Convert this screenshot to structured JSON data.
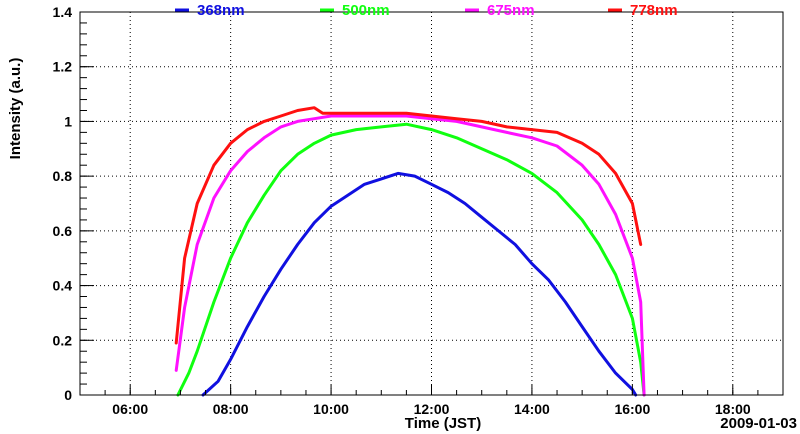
{
  "chart_data": {
    "type": "line",
    "title": "",
    "xlabel": "Time (JST)",
    "ylabel": "Intensity (a.u.)",
    "date_label": "2009-01-03",
    "xlim": [
      "05:00",
      "19:00"
    ],
    "ylim": [
      0,
      1.4
    ],
    "x_ticks": [
      "06:00",
      "08:00",
      "10:00",
      "12:00",
      "14:00",
      "16:00",
      "18:00"
    ],
    "y_ticks": [
      "0",
      "0.2",
      "0.4",
      "0.6",
      "0.8",
      "1",
      "1.2",
      "1.4"
    ],
    "grid": true,
    "legend_position": "top",
    "series": [
      {
        "name": "368nm",
        "color": "#1010e0",
        "x": [
          "07:27",
          "07:45",
          "08:00",
          "08:20",
          "08:40",
          "09:00",
          "09:20",
          "09:40",
          "10:00",
          "10:20",
          "10:40",
          "11:00",
          "11:20",
          "11:40",
          "12:00",
          "12:20",
          "12:40",
          "13:00",
          "13:20",
          "13:40",
          "14:00",
          "14:20",
          "14:40",
          "15:00",
          "15:20",
          "15:40",
          "16:00",
          "16:04"
        ],
        "y": [
          0.0,
          0.05,
          0.13,
          0.25,
          0.36,
          0.46,
          0.55,
          0.63,
          0.69,
          0.73,
          0.77,
          0.79,
          0.81,
          0.8,
          0.77,
          0.74,
          0.7,
          0.65,
          0.6,
          0.55,
          0.48,
          0.42,
          0.34,
          0.25,
          0.16,
          0.08,
          0.02,
          0.0
        ]
      },
      {
        "name": "500nm",
        "color": "#10ff10",
        "x": [
          "06:57",
          "07:10",
          "07:20",
          "07:40",
          "08:00",
          "08:20",
          "08:40",
          "09:00",
          "09:20",
          "09:40",
          "10:00",
          "10:30",
          "11:00",
          "11:30",
          "12:00",
          "12:30",
          "13:00",
          "13:30",
          "14:00",
          "14:30",
          "15:00",
          "15:20",
          "15:40",
          "16:00",
          "16:10",
          "16:14"
        ],
        "y": [
          0.0,
          0.08,
          0.16,
          0.34,
          0.5,
          0.63,
          0.73,
          0.82,
          0.88,
          0.92,
          0.95,
          0.97,
          0.98,
          0.99,
          0.97,
          0.94,
          0.9,
          0.86,
          0.81,
          0.74,
          0.64,
          0.55,
          0.44,
          0.28,
          0.12,
          0.0
        ]
      },
      {
        "name": "675nm",
        "color": "#ff10ff",
        "x": [
          "06:55",
          "07:05",
          "07:20",
          "07:40",
          "08:00",
          "08:20",
          "08:40",
          "09:00",
          "09:20",
          "09:40",
          "10:00",
          "10:30",
          "11:00",
          "11:30",
          "12:00",
          "12:30",
          "13:00",
          "13:30",
          "14:00",
          "14:30",
          "15:00",
          "15:20",
          "15:40",
          "16:00",
          "16:10",
          "16:14"
        ],
        "y": [
          0.09,
          0.32,
          0.55,
          0.72,
          0.82,
          0.89,
          0.94,
          0.98,
          1.0,
          1.01,
          1.02,
          1.02,
          1.02,
          1.02,
          1.01,
          1.0,
          0.98,
          0.96,
          0.94,
          0.91,
          0.84,
          0.77,
          0.66,
          0.5,
          0.34,
          0.0
        ]
      },
      {
        "name": "778nm",
        "color": "#ff1010",
        "x": [
          "06:55",
          "07:05",
          "07:20",
          "07:40",
          "08:00",
          "08:20",
          "08:40",
          "09:00",
          "09:20",
          "09:40",
          "09:50",
          "10:00",
          "10:30",
          "11:00",
          "11:30",
          "12:00",
          "12:30",
          "13:00",
          "13:30",
          "14:00",
          "14:30",
          "15:00",
          "15:20",
          "15:40",
          "16:00",
          "16:10"
        ],
        "y": [
          0.19,
          0.5,
          0.7,
          0.84,
          0.92,
          0.97,
          1.0,
          1.02,
          1.04,
          1.05,
          1.03,
          1.03,
          1.03,
          1.03,
          1.03,
          1.02,
          1.01,
          1.0,
          0.98,
          0.97,
          0.96,
          0.92,
          0.88,
          0.81,
          0.7,
          0.55
        ]
      }
    ]
  }
}
